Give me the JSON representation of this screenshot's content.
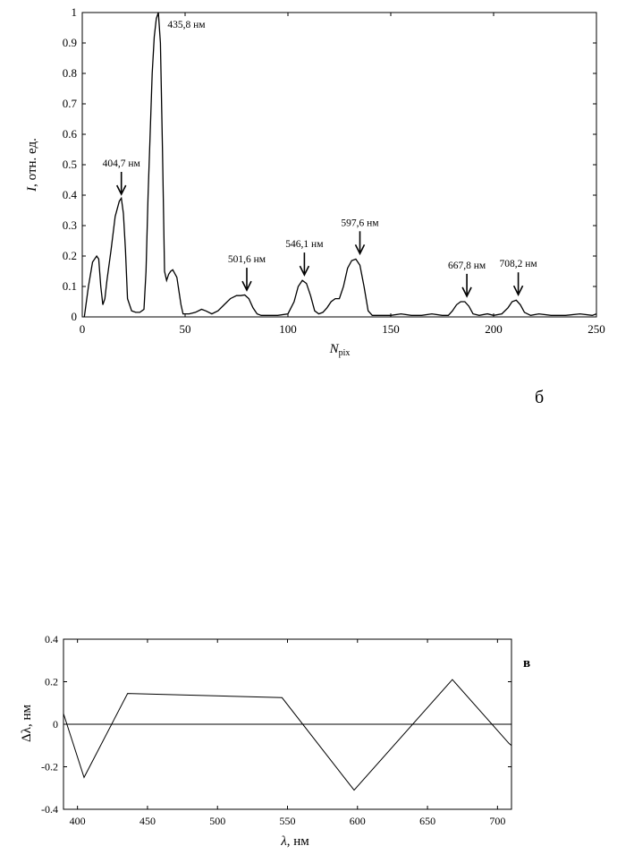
{
  "chart_data": [
    {
      "type": "line",
      "panel_label": "б",
      "title": "",
      "xlabel_main": "N",
      "xlabel_sub": "pix",
      "ylabel_italic": "I",
      "ylabel_rest": ", отн. ед.",
      "xlim": [
        0,
        250
      ],
      "ylim": [
        0,
        1
      ],
      "x_ticks": [
        0,
        50,
        100,
        150,
        200,
        250
      ],
      "y_ticks": [
        0,
        0.1,
        0.2,
        0.3,
        0.4,
        0.5,
        0.6,
        0.7,
        0.8,
        0.9,
        1
      ],
      "y_tick_labels": [
        "0",
        "0.1",
        "0.2",
        "0.3",
        "0.4",
        "0.5",
        "0.6",
        "0.7",
        "0.8",
        "0.9",
        "1"
      ],
      "grid": false,
      "series": [
        {
          "x": [
            1,
            3,
            5,
            7,
            8,
            9,
            10,
            11,
            12,
            14,
            16,
            18,
            19,
            20,
            21,
            22,
            24,
            26,
            28,
            30,
            31,
            32,
            33,
            34,
            35,
            36,
            37,
            38,
            39,
            40,
            41,
            42,
            43,
            44,
            46,
            48,
            49,
            50,
            52,
            55,
            58,
            60,
            63,
            66,
            69,
            72,
            75,
            77,
            79,
            81,
            83,
            85,
            87,
            90,
            95,
            100,
            103,
            105,
            107,
            109,
            111,
            113,
            115,
            117,
            119,
            121,
            123,
            125,
            127,
            129,
            131,
            133,
            135,
            137,
            139,
            141,
            145,
            150,
            155,
            160,
            165,
            170,
            175,
            178,
            180,
            182,
            184,
            186,
            188,
            190,
            193,
            197,
            200,
            204,
            207,
            209,
            211,
            213,
            215,
            218,
            222,
            228,
            235,
            242,
            248,
            250
          ],
          "y": [
            0.0,
            0.1,
            0.18,
            0.2,
            0.19,
            0.1,
            0.04,
            0.06,
            0.12,
            0.22,
            0.33,
            0.38,
            0.39,
            0.34,
            0.22,
            0.06,
            0.02,
            0.015,
            0.015,
            0.025,
            0.15,
            0.4,
            0.6,
            0.8,
            0.92,
            0.98,
            1.0,
            0.9,
            0.55,
            0.15,
            0.12,
            0.14,
            0.15,
            0.155,
            0.13,
            0.04,
            0.01,
            0.01,
            0.01,
            0.015,
            0.025,
            0.02,
            0.01,
            0.02,
            0.04,
            0.06,
            0.07,
            0.07,
            0.072,
            0.06,
            0.03,
            0.01,
            0.005,
            0.005,
            0.005,
            0.01,
            0.05,
            0.1,
            0.12,
            0.11,
            0.07,
            0.02,
            0.01,
            0.015,
            0.03,
            0.05,
            0.06,
            0.06,
            0.1,
            0.16,
            0.185,
            0.19,
            0.17,
            0.1,
            0.02,
            0.005,
            0.005,
            0.005,
            0.01,
            0.005,
            0.005,
            0.01,
            0.005,
            0.005,
            0.02,
            0.04,
            0.05,
            0.05,
            0.035,
            0.01,
            0.005,
            0.01,
            0.005,
            0.01,
            0.03,
            0.05,
            0.055,
            0.04,
            0.015,
            0.005,
            0.01,
            0.005,
            0.005,
            0.01,
            0.005,
            0.01
          ]
        }
      ],
      "annotations": [
        {
          "text": "404,7 нм",
          "arrow_x": 19,
          "arrow_y": 0.4,
          "has_arrow": true
        },
        {
          "text": "435,8 нм",
          "arrow_x": 38,
          "arrow_y": 1.0,
          "has_arrow": false
        },
        {
          "text": "501,6 нм",
          "arrow_x": 80,
          "arrow_y": 0.085,
          "has_arrow": true
        },
        {
          "text": "546,1 нм",
          "arrow_x": 108,
          "arrow_y": 0.135,
          "has_arrow": true
        },
        {
          "text": "597,6 нм",
          "arrow_x": 135,
          "arrow_y": 0.205,
          "has_arrow": true
        },
        {
          "text": "667,8 нм",
          "arrow_x": 187,
          "arrow_y": 0.065,
          "has_arrow": true
        },
        {
          "text": "708,2 нм",
          "arrow_x": 212,
          "arrow_y": 0.07,
          "has_arrow": true
        }
      ]
    },
    {
      "type": "line",
      "panel_label": "в",
      "title": "",
      "xlabel_italic": "λ",
      "xlabel_rest": ", нм",
      "ylabel_italic": "Δλ",
      "ylabel_rest": ", нм",
      "xlim": [
        390,
        710
      ],
      "ylim": [
        -0.4,
        0.4
      ],
      "x_ticks": [
        400,
        450,
        500,
        550,
        600,
        650,
        700
      ],
      "y_ticks": [
        -0.4,
        -0.2,
        0,
        0.2,
        0.4
      ],
      "y_tick_labels": [
        "-0.4",
        "-0.2",
        "0",
        "0.2",
        "0.4"
      ],
      "grid": false,
      "zero_line": true,
      "series": [
        {
          "x": [
            390,
            404.7,
            435.8,
            546.1,
            597.6,
            667.8,
            708.2,
            710
          ],
          "y": [
            0.05,
            -0.25,
            0.145,
            0.125,
            -0.31,
            0.21,
            -0.09,
            -0.1
          ]
        }
      ]
    }
  ]
}
